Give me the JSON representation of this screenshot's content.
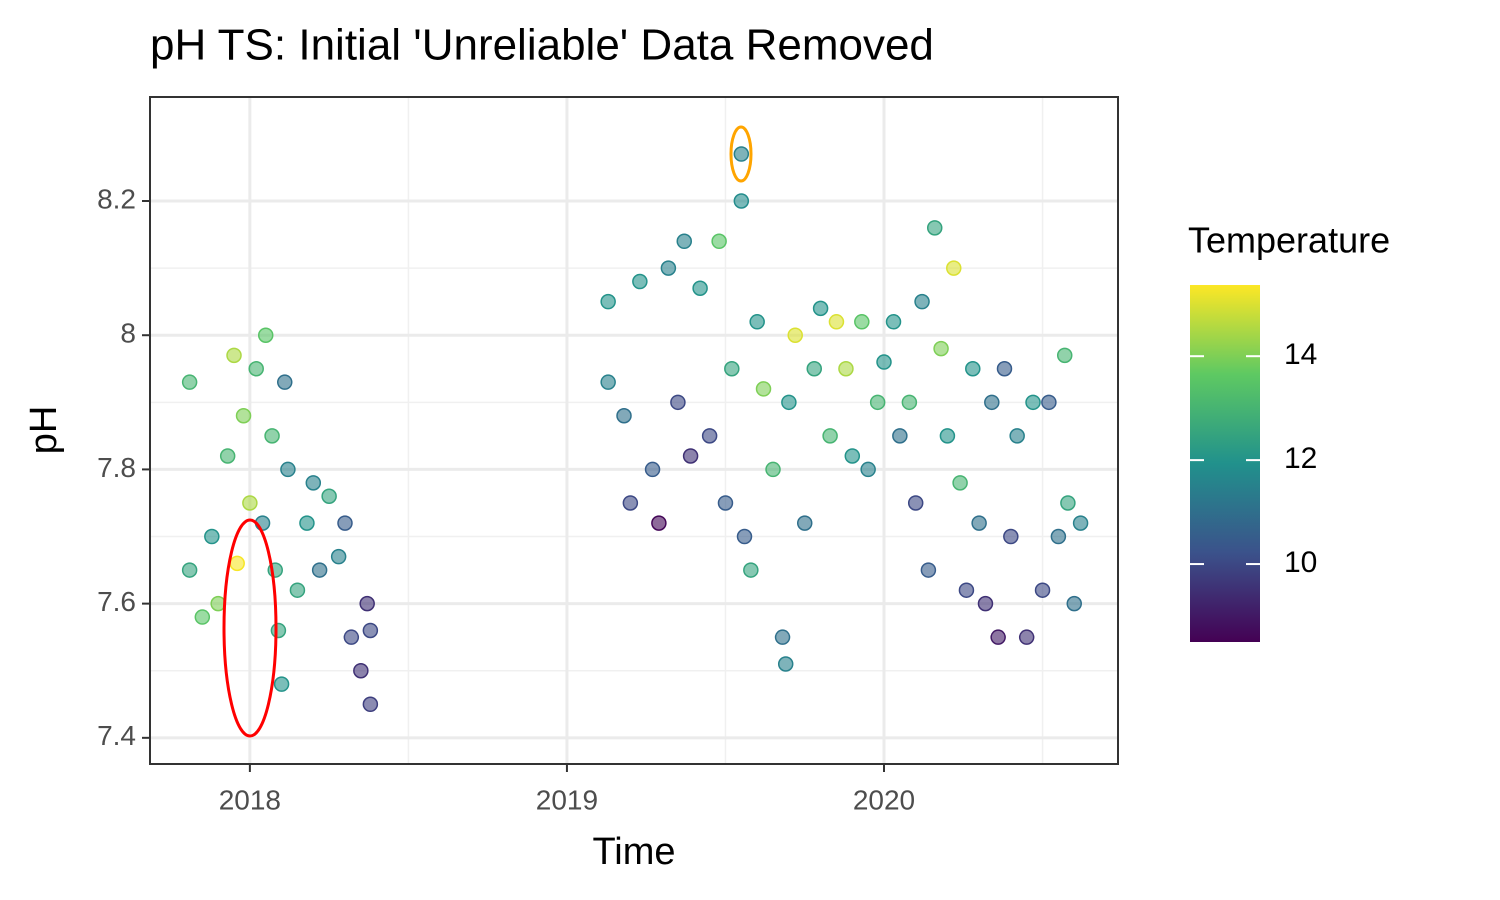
{
  "chart_data": {
    "type": "scatter",
    "title": "pH TS: Initial 'Unreliable' Data Removed",
    "x_label": "Time",
    "y_label": "pH",
    "color_label": "Temperature",
    "xlim": [
      2017.685,
      2020.738
    ],
    "xticks": [
      2018,
      2019,
      2020
    ],
    "ylim": [
      7.361,
      8.355
    ],
    "yticks": [
      7.4,
      7.6,
      7.8,
      8.0,
      8.2
    ],
    "color_lim": [
      8.5,
      15.37
    ],
    "color_ticks": [
      10,
      12,
      14
    ],
    "grid": true,
    "x": [
      2017.81,
      2017.81,
      2017.85,
      2017.88,
      2017.9,
      2017.93,
      2017.95,
      2017.96,
      2017.98,
      2018.0,
      2018.02,
      2018.04,
      2018.05,
      2018.07,
      2018.08,
      2018.09,
      2018.1,
      2018.11,
      2018.12,
      2018.15,
      2018.18,
      2018.2,
      2018.22,
      2018.25,
      2018.28,
      2018.3,
      2018.32,
      2018.35,
      2018.37,
      2018.38,
      2018.38,
      2019.13,
      2019.13,
      2019.18,
      2019.2,
      2019.23,
      2019.27,
      2019.29,
      2019.32,
      2019.35,
      2019.37,
      2019.39,
      2019.42,
      2019.45,
      2019.48,
      2019.5,
      2019.52,
      2019.55,
      2019.55,
      2019.56,
      2019.58,
      2019.6,
      2019.62,
      2019.65,
      2019.68,
      2019.69,
      2019.7,
      2019.72,
      2019.75,
      2019.78,
      2019.8,
      2019.83,
      2019.85,
      2019.88,
      2019.9,
      2019.93,
      2019.95,
      2019.98,
      2020.0,
      2020.03,
      2020.05,
      2020.08,
      2020.1,
      2020.12,
      2020.14,
      2020.16,
      2020.18,
      2020.2,
      2020.22,
      2020.24,
      2020.26,
      2020.28,
      2020.3,
      2020.32,
      2020.34,
      2020.36,
      2020.38,
      2020.4,
      2020.42,
      2020.45,
      2020.47,
      2020.5,
      2020.52,
      2020.55,
      2020.57,
      2020.58,
      2020.6,
      2020.62
    ],
    "y": [
      7.93,
      7.65,
      7.58,
      7.7,
      7.6,
      7.82,
      7.97,
      7.66,
      7.88,
      7.75,
      7.95,
      7.72,
      8.0,
      7.85,
      7.65,
      7.56,
      7.48,
      7.93,
      7.8,
      7.62,
      7.72,
      7.78,
      7.65,
      7.76,
      7.67,
      7.72,
      7.55,
      7.5,
      7.6,
      7.45,
      7.56,
      8.05,
      7.93,
      7.88,
      7.75,
      8.08,
      7.8,
      7.72,
      8.1,
      7.9,
      8.14,
      7.82,
      8.07,
      7.85,
      8.14,
      7.75,
      7.95,
      8.27,
      8.2,
      7.7,
      7.65,
      8.02,
      7.92,
      7.8,
      7.55,
      7.51,
      7.9,
      8.0,
      7.72,
      7.95,
      8.04,
      7.85,
      8.02,
      7.95,
      7.82,
      8.02,
      7.8,
      7.9,
      7.96,
      8.02,
      7.85,
      7.9,
      7.75,
      8.05,
      7.65,
      8.16,
      7.98,
      7.85,
      8.1,
      7.78,
      7.62,
      7.95,
      7.72,
      7.6,
      7.9,
      7.55,
      7.95,
      7.7,
      7.85,
      7.55,
      7.9,
      7.62,
      7.9,
      7.7,
      7.97,
      7.75,
      7.6,
      7.72
    ],
    "temperature": [
      13,
      12.5,
      13.5,
      12,
      14,
      13,
      14.5,
      15.3,
      14,
      14.5,
      13,
      11.5,
      13.5,
      13,
      12.5,
      12.5,
      12,
      11,
      11.5,
      12.5,
      12,
      11.5,
      11,
      12.5,
      11.5,
      10.5,
      10,
      9.5,
      9.5,
      9.8,
      10,
      12,
      11.5,
      11,
      10,
      12,
      10.5,
      8.6,
      11.5,
      10,
      11.5,
      9.5,
      12,
      10,
      13.5,
      10.5,
      12.5,
      11.5,
      11.8,
      10.5,
      12.5,
      12,
      14,
      13,
      11,
      11.5,
      12,
      15,
      11,
      12.5,
      12,
      13,
      15,
      14.5,
      12,
      13.5,
      11.5,
      13,
      12,
      12,
      11,
      13,
      10,
      11.5,
      10.5,
      12.5,
      14,
      12,
      15,
      13,
      10,
      12,
      11,
      9.5,
      11,
      9,
      10.5,
      10,
      11.5,
      9.5,
      12,
      10,
      10.5,
      11,
      13,
      12.5,
      11,
      11.5
    ]
  }
}
